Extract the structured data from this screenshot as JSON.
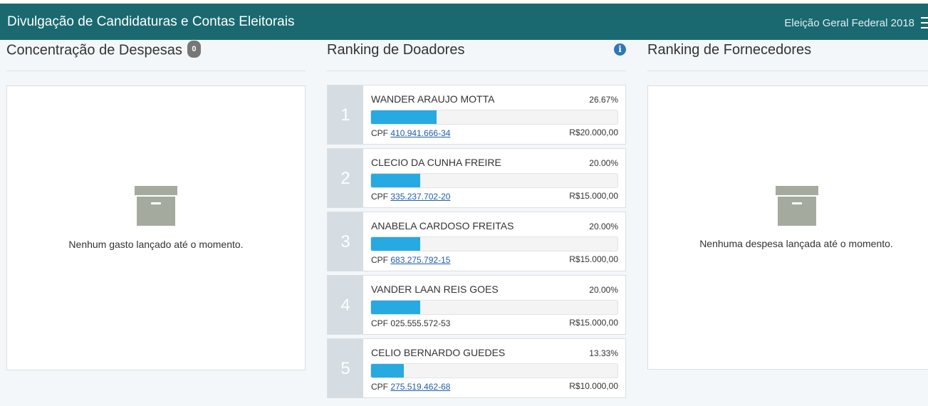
{
  "header": {
    "title": "Divulgação de Candidaturas e Contas Eleitorais",
    "election": "Eleição Geral Federal 2018",
    "menu_icon": "hamburger-icon"
  },
  "despesas": {
    "title": "Concentração de Despesas",
    "badge": "0",
    "empty_text": "Nenhum gasto lançado até o momento.",
    "icon": "archive-box-icon"
  },
  "doadores": {
    "title": "Ranking de Doadores",
    "info_icon": "info-icon",
    "items": [
      {
        "rank": "1",
        "name": "WANDER ARAUJO MOTTA",
        "percent": "26.67%",
        "share": 0.2667,
        "cpf_label": "CPF",
        "cpf": "410.941.666-34",
        "cpf_link": true,
        "amount": "R$20.000,00"
      },
      {
        "rank": "2",
        "name": "CLECIO DA CUNHA FREIRE",
        "percent": "20.00%",
        "share": 0.2,
        "cpf_label": "CPF",
        "cpf": "335.237.702-20",
        "cpf_link": true,
        "amount": "R$15.000,00"
      },
      {
        "rank": "3",
        "name": "ANABELA CARDOSO FREITAS",
        "percent": "20.00%",
        "share": 0.2,
        "cpf_label": "CPF",
        "cpf": "683.275.792-15",
        "cpf_link": true,
        "amount": "R$15.000,00"
      },
      {
        "rank": "4",
        "name": "VANDER LAAN REIS GOES",
        "percent": "20.00%",
        "share": 0.2,
        "cpf_label": "CPF",
        "cpf": "025.555.572-53",
        "cpf_link": false,
        "amount": "R$15.000,00"
      },
      {
        "rank": "5",
        "name": "CELIO BERNARDO GUEDES",
        "percent": "13.33%",
        "share": 0.1333,
        "cpf_label": "CPF",
        "cpf": "275.519.462-68",
        "cpf_link": true,
        "amount": "R$10.000,00"
      }
    ]
  },
  "fornecedores": {
    "title": "Ranking de Fornecedores",
    "empty_text": "Nenhuma despesa lançada até o momento.",
    "icon": "archive-box-icon"
  },
  "colors": {
    "header_bg": "#1a6970",
    "bar_fill": "#27aae1",
    "rank_bg": "#d5dde2",
    "link": "#1f5ea8"
  }
}
